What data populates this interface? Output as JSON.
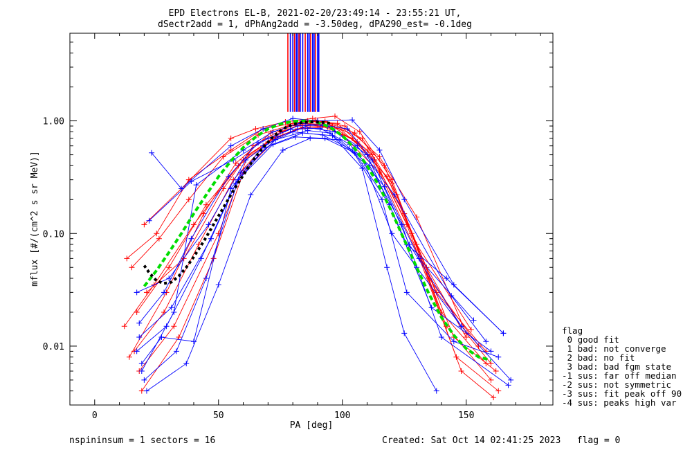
{
  "chart_data": {
    "type": "line",
    "title_line1": "EPD Electrons EL-B, 2021-02-20/23:49:14 - 23:55:21 UT,",
    "title_line2": "dSectr2add = 1, dPhAng2add = -3.50deg, dPA290_est=  -0.1deg",
    "xlabel": "PA [deg]",
    "ylabel": "mflux [#/(cm^2 s sr MeV)]",
    "xlim": [
      -10,
      185
    ],
    "ylim": [
      0.003,
      6
    ],
    "yscale": "log",
    "x_ticks": [
      0,
      50,
      100,
      150
    ],
    "y_ticks": [
      {
        "value": 0.01,
        "label": "0.01"
      },
      {
        "value": 0.1,
        "label": "0.10"
      },
      {
        "value": 1.0,
        "label": "1.00"
      }
    ],
    "series": [
      {
        "color": "#ff0000",
        "x": [
          20,
          35,
          55,
          65,
          77,
          88,
          97,
          107,
          120,
          140,
          158
        ],
        "y": [
          0.12,
          0.25,
          0.7,
          0.85,
          0.98,
          1.05,
          1.1,
          0.8,
          0.3,
          0.02,
          0.007
        ]
      },
      {
        "color": "#ff0000",
        "x": [
          13,
          25,
          38,
          55,
          68,
          80,
          90,
          100,
          115,
          135,
          155
        ],
        "y": [
          0.06,
          0.1,
          0.3,
          0.55,
          0.85,
          0.95,
          1.0,
          0.75,
          0.35,
          0.04,
          0.01
        ]
      },
      {
        "color": "#ff0000",
        "x": [
          17,
          30,
          45,
          60,
          75,
          85,
          95,
          108,
          122,
          142,
          160
        ],
        "y": [
          0.02,
          0.05,
          0.18,
          0.45,
          0.8,
          0.95,
          0.92,
          0.7,
          0.22,
          0.015,
          0.005
        ]
      },
      {
        "color": "#ff0000",
        "x": [
          12,
          24,
          40,
          58,
          72,
          84,
          96,
          110,
          125,
          145,
          162
        ],
        "y": [
          0.015,
          0.035,
          0.12,
          0.4,
          0.7,
          0.88,
          0.9,
          0.55,
          0.15,
          0.012,
          0.006
        ]
      },
      {
        "color": "#ff0000",
        "x": [
          16,
          28,
          42,
          56,
          70,
          82,
          94,
          106,
          120,
          138,
          158
        ],
        "y": [
          0.009,
          0.02,
          0.08,
          0.3,
          0.65,
          0.85,
          0.88,
          0.65,
          0.28,
          0.03,
          0.009
        ]
      },
      {
        "color": "#ff0000",
        "x": [
          18,
          32,
          50,
          62,
          76,
          86,
          98,
          112,
          126,
          146,
          163
        ],
        "y": [
          0.006,
          0.015,
          0.1,
          0.5,
          0.8,
          1.0,
          0.95,
          0.5,
          0.12,
          0.008,
          0.004
        ]
      },
      {
        "color": "#ff0000",
        "x": [
          15,
          26,
          38,
          52,
          66,
          78,
          90,
          104,
          118,
          134,
          150
        ],
        "y": [
          0.05,
          0.09,
          0.2,
          0.48,
          0.75,
          0.9,
          0.93,
          0.7,
          0.32,
          0.05,
          0.012
        ]
      },
      {
        "color": "#ff0000",
        "x": [
          19,
          34,
          48,
          60,
          74,
          87,
          99,
          113,
          128,
          148,
          161
        ],
        "y": [
          0.004,
          0.012,
          0.06,
          0.35,
          0.72,
          0.92,
          0.85,
          0.45,
          0.1,
          0.006,
          0.0035
        ]
      },
      {
        "color": "#ff0000",
        "x": [
          14,
          29,
          44,
          57,
          71,
          83,
          93,
          105,
          117,
          130,
          152
        ],
        "y": [
          0.008,
          0.03,
          0.15,
          0.42,
          0.78,
          0.97,
          0.99,
          0.78,
          0.4,
          0.08,
          0.014
        ]
      },
      {
        "color": "#ff0000",
        "x": [
          21,
          36,
          52,
          64,
          78,
          89,
          101,
          115,
          130,
          150,
          160
        ],
        "y": [
          0.03,
          0.06,
          0.25,
          0.6,
          0.9,
          1.02,
          0.9,
          0.48,
          0.14,
          0.013,
          0.007
        ]
      },
      {
        "color": "#0000ff",
        "x": [
          23,
          35,
          55,
          68,
          80,
          90,
          104,
          115,
          125,
          145,
          165
        ],
        "y": [
          0.52,
          0.25,
          0.6,
          0.85,
          1.05,
          1.0,
          1.02,
          0.55,
          0.2,
          0.035,
          0.013
        ]
      },
      {
        "color": "#0000ff",
        "x": [
          22,
          39,
          56,
          70,
          82,
          92,
          102,
          112,
          127,
          148,
          168
        ],
        "y": [
          0.13,
          0.29,
          0.45,
          0.7,
          0.9,
          0.92,
          0.85,
          0.45,
          0.08,
          0.015,
          0.005
        ]
      },
      {
        "color": "#0000ff",
        "x": [
          17,
          30,
          46,
          61,
          74,
          85,
          97,
          110,
          126,
          142,
          165
        ],
        "y": [
          0.03,
          0.04,
          0.12,
          0.45,
          0.72,
          0.88,
          0.8,
          0.5,
          0.08,
          0.04,
          0.013
        ]
      },
      {
        "color": "#0000ff",
        "x": [
          18,
          31,
          47,
          59,
          73,
          86,
          95,
          109,
          120,
          130,
          148
        ],
        "y": [
          0.012,
          0.022,
          0.09,
          0.35,
          0.68,
          0.82,
          0.78,
          0.42,
          0.1,
          0.05,
          0.015
        ]
      },
      {
        "color": "#0000ff",
        "x": [
          19,
          27,
          40,
          55,
          68,
          80,
          92,
          104,
          116,
          126,
          145,
          163
        ],
        "y": [
          0.007,
          0.012,
          0.011,
          0.25,
          0.6,
          0.8,
          0.75,
          0.55,
          0.2,
          0.03,
          0.011,
          0.008
        ]
      },
      {
        "color": "#0000ff",
        "x": [
          20,
          33,
          45,
          58,
          72,
          84,
          96,
          108,
          118,
          125,
          138
        ],
        "y": [
          0.005,
          0.009,
          0.04,
          0.3,
          0.62,
          0.78,
          0.74,
          0.38,
          0.05,
          0.013,
          0.004
        ]
      },
      {
        "color": "#0000ff",
        "x": [
          17,
          29,
          43,
          57,
          69,
          81,
          93,
          105,
          119,
          136,
          160
        ],
        "y": [
          0.009,
          0.015,
          0.06,
          0.28,
          0.58,
          0.72,
          0.7,
          0.52,
          0.18,
          0.022,
          0.009
        ]
      },
      {
        "color": "#0000ff",
        "x": [
          21,
          37,
          50,
          63,
          76,
          87,
          99,
          111,
          124,
          140,
          167
        ],
        "y": [
          0.004,
          0.007,
          0.035,
          0.22,
          0.55,
          0.7,
          0.68,
          0.4,
          0.12,
          0.012,
          0.0045
        ]
      },
      {
        "color": "#0000ff",
        "x": [
          18,
          28,
          39,
          54,
          66,
          79,
          91,
          103,
          117,
          131,
          153
        ],
        "y": [
          0.016,
          0.03,
          0.09,
          0.32,
          0.64,
          0.84,
          0.86,
          0.62,
          0.26,
          0.06,
          0.017
        ]
      },
      {
        "color": "#0000ff",
        "x": [
          19,
          32,
          41,
          60,
          72,
          83,
          94,
          106,
          121,
          144,
          158
        ],
        "y": [
          0.006,
          0.02,
          0.27,
          0.55,
          0.8,
          0.95,
          0.9,
          0.6,
          0.22,
          0.028,
          0.011
        ]
      }
    ],
    "fit_green": {
      "color": "#00dd00",
      "x": [
        20,
        25,
        30,
        35,
        40,
        45,
        50,
        55,
        60,
        65,
        70,
        75,
        80,
        85,
        90,
        95,
        100,
        105,
        110,
        115,
        120,
        125,
        130,
        135,
        140,
        145,
        150,
        155,
        160
      ],
      "y": [
        0.034,
        0.047,
        0.068,
        0.1,
        0.15,
        0.22,
        0.32,
        0.44,
        0.58,
        0.72,
        0.85,
        0.94,
        0.99,
        1.0,
        0.97,
        0.88,
        0.74,
        0.57,
        0.4,
        0.26,
        0.155,
        0.088,
        0.05,
        0.029,
        0.018,
        0.0125,
        0.0095,
        0.008,
        0.0075
      ]
    },
    "fit_black": {
      "color": "#000000",
      "x": [
        20,
        22,
        25,
        28,
        31,
        34,
        37,
        40,
        44,
        48,
        52,
        56,
        60,
        64,
        68,
        72,
        76,
        80,
        84,
        88,
        92,
        96
      ],
      "y": [
        0.052,
        0.045,
        0.038,
        0.036,
        0.037,
        0.042,
        0.05,
        0.062,
        0.085,
        0.12,
        0.17,
        0.24,
        0.33,
        0.45,
        0.58,
        0.72,
        0.85,
        0.93,
        0.97,
        0.98,
        0.97,
        0.95
      ]
    },
    "stripe_x": [
      78,
      79,
      80,
      80.7,
      81.4,
      82,
      82.5,
      83,
      84,
      85,
      86,
      86.6,
      87.2,
      88,
      88.6,
      89.2,
      90,
      90.5
    ],
    "stripe_colors": [
      "#ff0000",
      "#0000ff",
      "#0000ff",
      "#ff0000",
      "#0000ff",
      "#0000ff",
      "#ff0000",
      "#0000ff",
      "#0000ff",
      "#ff0000",
      "#0000ff",
      "#0000ff",
      "#ff0000",
      "#0000ff",
      "#0000ff",
      "#ff0000",
      "#0000ff",
      "#0000ff"
    ],
    "stripe_bottom": 1.2
  },
  "legend": {
    "header": "flag",
    "items": [
      " 0 good fit",
      " 1 bad: not converge",
      " 2 bad: no fit",
      " 3 bad: bad fgm state",
      "-1 sus: far off median",
      "-2 sus: not symmetric",
      "-3 sus: fit peak off 90",
      "-4 sus: peaks high var"
    ]
  },
  "footer": {
    "left": "nspininsum =  1  sectors = 16",
    "right": "Created: Sat Oct 14 02:41:25 2023   flag = 0"
  }
}
